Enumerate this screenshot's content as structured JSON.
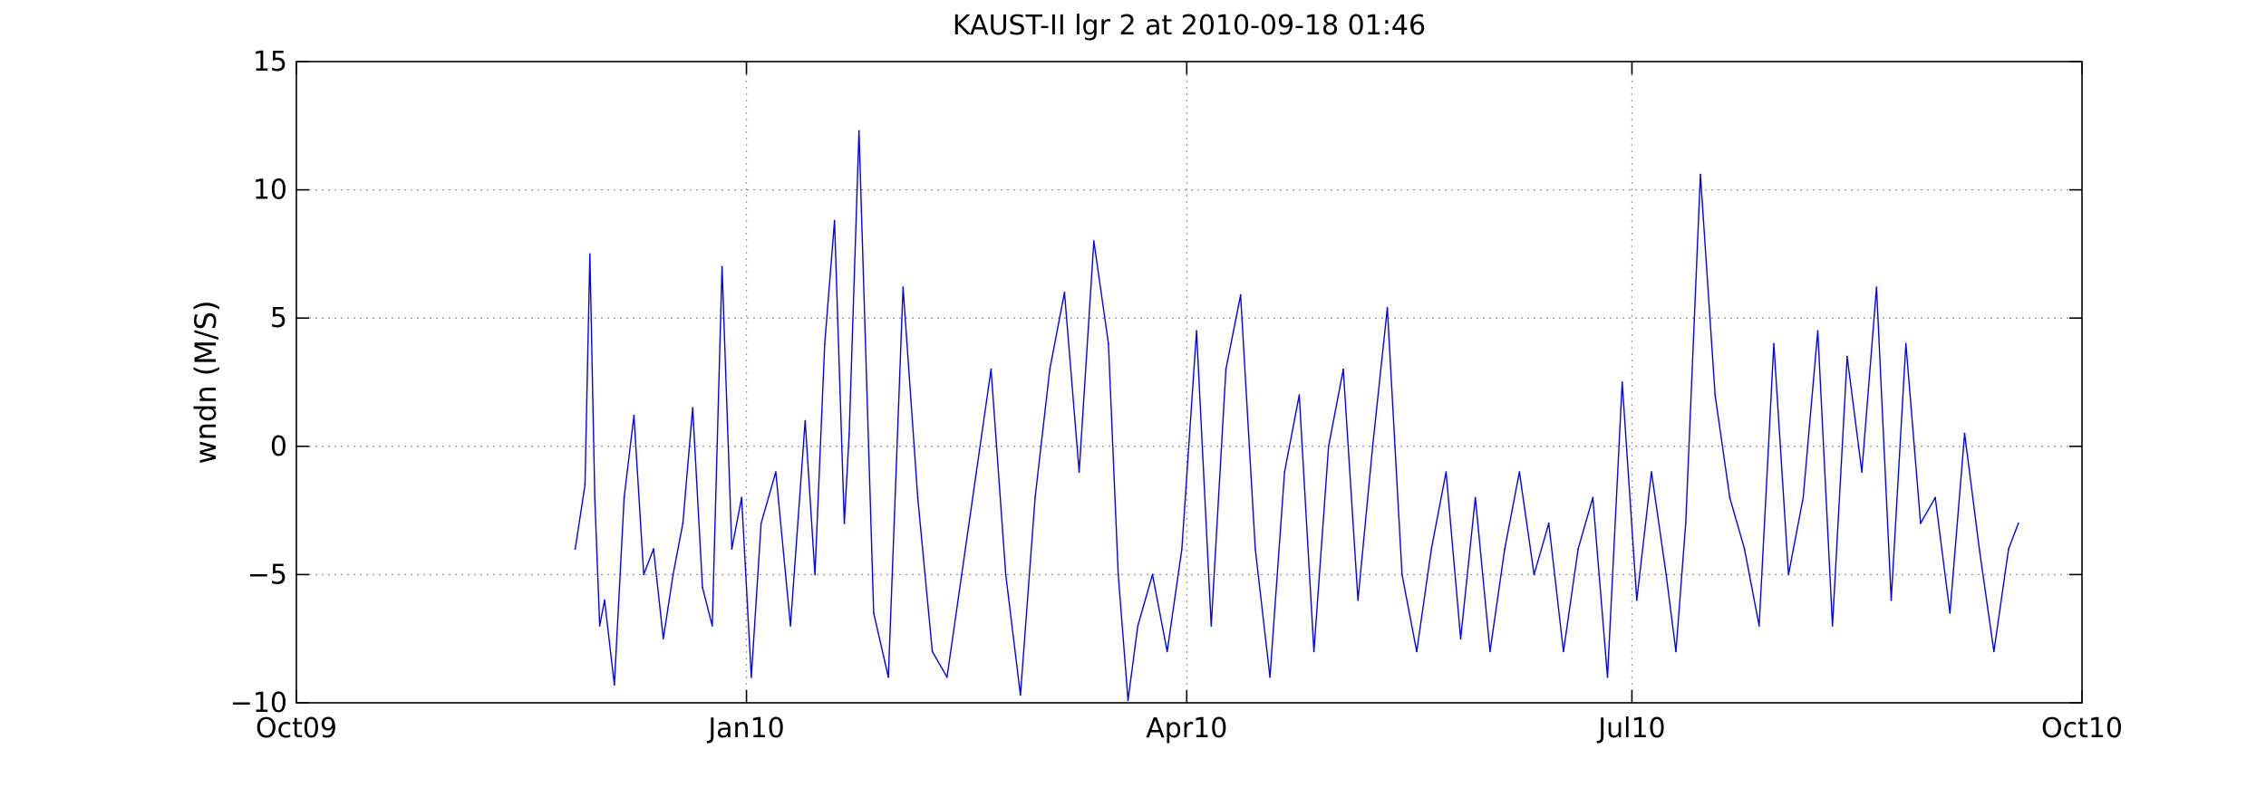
{
  "chart_data": {
    "type": "line",
    "title": "KAUST-II lgr 2 at 2010-09-18 01:46",
    "xlabel": "",
    "ylabel": "wndn (M/S)",
    "x_ticks": [
      {
        "label": "Oct09",
        "day": 0
      },
      {
        "label": "Jan10",
        "day": 92
      },
      {
        "label": "Apr10",
        "day": 182
      },
      {
        "label": "Jul10",
        "day": 273
      },
      {
        "label": "Oct10",
        "day": 365
      }
    ],
    "x_domain_dates": [
      "2009-10-01",
      "2010-10-01"
    ],
    "y_ticks": [
      -10,
      -5,
      0,
      5,
      10,
      15
    ],
    "ylim": [
      -10,
      15
    ],
    "grid": true,
    "legend": "none",
    "series_color": "#0000ff",
    "series": [
      {
        "x": [
          "2009-11-27",
          "2009-11-29",
          "2009-11-30",
          "2009-12-01",
          "2009-12-02",
          "2009-12-03",
          "2009-12-05",
          "2009-12-07",
          "2009-12-09",
          "2009-12-11",
          "2009-12-13",
          "2009-12-15",
          "2009-12-17",
          "2009-12-19",
          "2009-12-21",
          "2009-12-23",
          "2009-12-25",
          "2009-12-27",
          "2009-12-29",
          "2009-12-31",
          "2010-01-02",
          "2010-01-04",
          "2010-01-07",
          "2010-01-10",
          "2010-01-13",
          "2010-01-15",
          "2010-01-17",
          "2010-01-19",
          "2010-01-21",
          "2010-01-22",
          "2010-01-24",
          "2010-01-27",
          "2010-01-30",
          "2010-02-02",
          "2010-02-05",
          "2010-02-08",
          "2010-02-11",
          "2010-02-14",
          "2010-02-17",
          "2010-02-20",
          "2010-02-23",
          "2010-02-26",
          "2010-03-01",
          "2010-03-04",
          "2010-03-07",
          "2010-03-10",
          "2010-03-13",
          "2010-03-16",
          "2010-03-18",
          "2010-03-20",
          "2010-03-22",
          "2010-03-25",
          "2010-03-28",
          "2010-03-31",
          "2010-04-03",
          "2010-04-06",
          "2010-04-09",
          "2010-04-12",
          "2010-04-15",
          "2010-04-18",
          "2010-04-21",
          "2010-04-24",
          "2010-04-27",
          "2010-04-30",
          "2010-05-03",
          "2010-05-06",
          "2010-05-09",
          "2010-05-12",
          "2010-05-15",
          "2010-05-18",
          "2010-05-21",
          "2010-05-24",
          "2010-05-27",
          "2010-05-30",
          "2010-06-02",
          "2010-06-05",
          "2010-06-08",
          "2010-06-11",
          "2010-06-14",
          "2010-06-17",
          "2010-06-20",
          "2010-06-23",
          "2010-06-26",
          "2010-06-29",
          "2010-07-02",
          "2010-07-05",
          "2010-07-08",
          "2010-07-10",
          "2010-07-12",
          "2010-07-15",
          "2010-07-18",
          "2010-07-21",
          "2010-07-24",
          "2010-07-27",
          "2010-07-30",
          "2010-08-02",
          "2010-08-05",
          "2010-08-08",
          "2010-08-11",
          "2010-08-14",
          "2010-08-17",
          "2010-08-20",
          "2010-08-23",
          "2010-08-26",
          "2010-08-29",
          "2010-09-01",
          "2010-09-04",
          "2010-09-07",
          "2010-09-10",
          "2010-09-13",
          "2010-09-16",
          "2010-09-18"
        ],
        "values": [
          -4.0,
          -1.5,
          7.5,
          -2.0,
          -7.0,
          -6.0,
          -9.3,
          -2.0,
          1.2,
          -5.0,
          -4.0,
          -7.5,
          -5.0,
          -3.0,
          1.5,
          -5.5,
          -7.0,
          7.0,
          -4.0,
          -2.0,
          -9.0,
          -3.0,
          -1.0,
          -7.0,
          1.0,
          -5.0,
          4.0,
          8.8,
          -3.0,
          0.5,
          12.3,
          -6.5,
          -9.0,
          6.2,
          -2.0,
          -8.0,
          -9.0,
          -5.0,
          -1.0,
          3.0,
          -5.0,
          -9.7,
          -2.0,
          3.0,
          6.0,
          -1.0,
          8.0,
          4.0,
          -5.0,
          -9.9,
          -7.0,
          -5.0,
          -8.0,
          -4.0,
          4.5,
          -7.0,
          3.0,
          5.9,
          -4.0,
          -9.0,
          -1.0,
          2.0,
          -8.0,
          0.0,
          3.0,
          -6.0,
          0.0,
          5.4,
          -5.0,
          -8.0,
          -4.0,
          -1.0,
          -7.5,
          -2.0,
          -8.0,
          -4.0,
          -1.0,
          -5.0,
          -3.0,
          -8.0,
          -4.0,
          -2.0,
          -9.0,
          2.5,
          -6.0,
          -1.0,
          -5.0,
          -8.0,
          -3.0,
          10.6,
          2.0,
          -2.0,
          -4.0,
          -7.0,
          4.0,
          -5.0,
          -2.0,
          4.5,
          -7.0,
          3.5,
          -1.0,
          6.2,
          -6.0,
          4.0,
          -3.0,
          -2.0,
          -6.5,
          0.5,
          -4.0,
          -8.0,
          -4.0,
          -3.0
        ]
      }
    ]
  }
}
